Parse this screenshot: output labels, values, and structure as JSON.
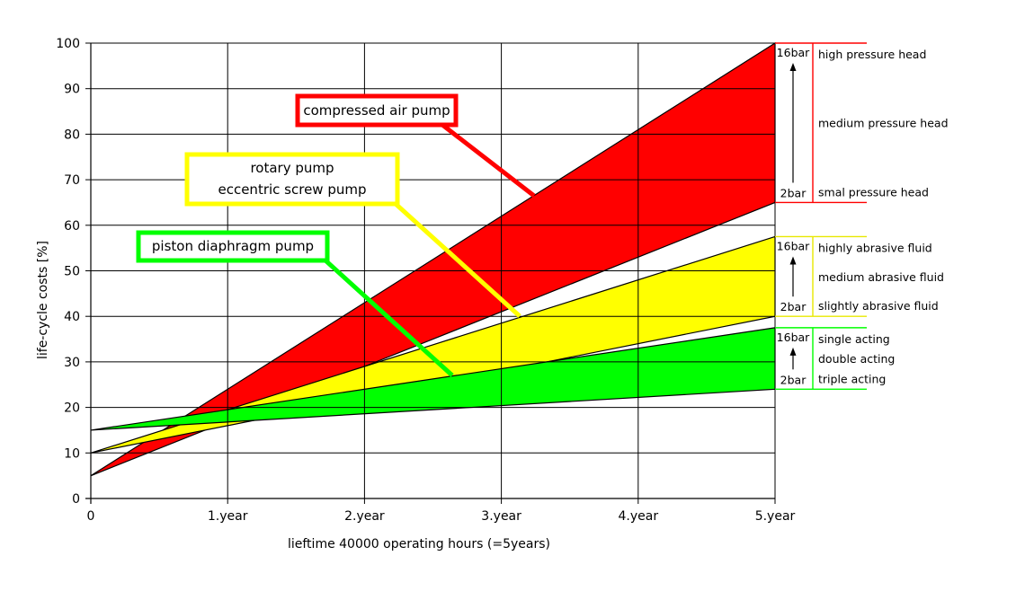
{
  "chart_data": {
    "type": "area",
    "xlabel": "lieftime 40000 operating hours (=5years)",
    "ylabel": "life-cycle costs [%]",
    "x": [
      0,
      5
    ],
    "x_ticks": [
      {
        "value": 0,
        "label": "0"
      },
      {
        "value": 1,
        "label": "1.year"
      },
      {
        "value": 2,
        "label": "2.year"
      },
      {
        "value": 3,
        "label": "3.year"
      },
      {
        "value": 4,
        "label": "4.year"
      },
      {
        "value": 5,
        "label": "5.year"
      }
    ],
    "y_ticks": [
      0,
      10,
      20,
      30,
      40,
      50,
      60,
      70,
      80,
      90,
      100
    ],
    "xlim": [
      0,
      5
    ],
    "ylim": [
      0,
      100
    ],
    "grid": true,
    "series": [
      {
        "name": "compressed air pump",
        "color": "#ff0000",
        "start": 5,
        "end_low": 65,
        "end_high": 100,
        "callout": [
          "compressed air pump"
        ],
        "range_labels": [
          "high pressure head",
          "medium pressure head",
          "smal pressure head"
        ],
        "range_top": "16bar",
        "range_bottom": "2bar"
      },
      {
        "name": "rotary pump / eccentric screw pump",
        "color": "#ffff00",
        "start": 10,
        "end_low": 40,
        "end_high": 57.5,
        "callout": [
          "rotary pump",
          "eccentric screw pump"
        ],
        "range_labels": [
          "highly abrasive fluid",
          "medium abrasive fluid",
          "slightly abrasive fluid"
        ],
        "range_top": "16bar",
        "range_bottom": "2bar"
      },
      {
        "name": "piston diaphragm pump",
        "color": "#00ff00",
        "start": 15,
        "end_low": 24,
        "end_high": 37.5,
        "callout": [
          "piston diaphragm pump"
        ],
        "range_labels": [
          "single acting",
          "double acting",
          "triple acting"
        ],
        "range_top": "16bar",
        "range_bottom": "2bar"
      }
    ]
  }
}
